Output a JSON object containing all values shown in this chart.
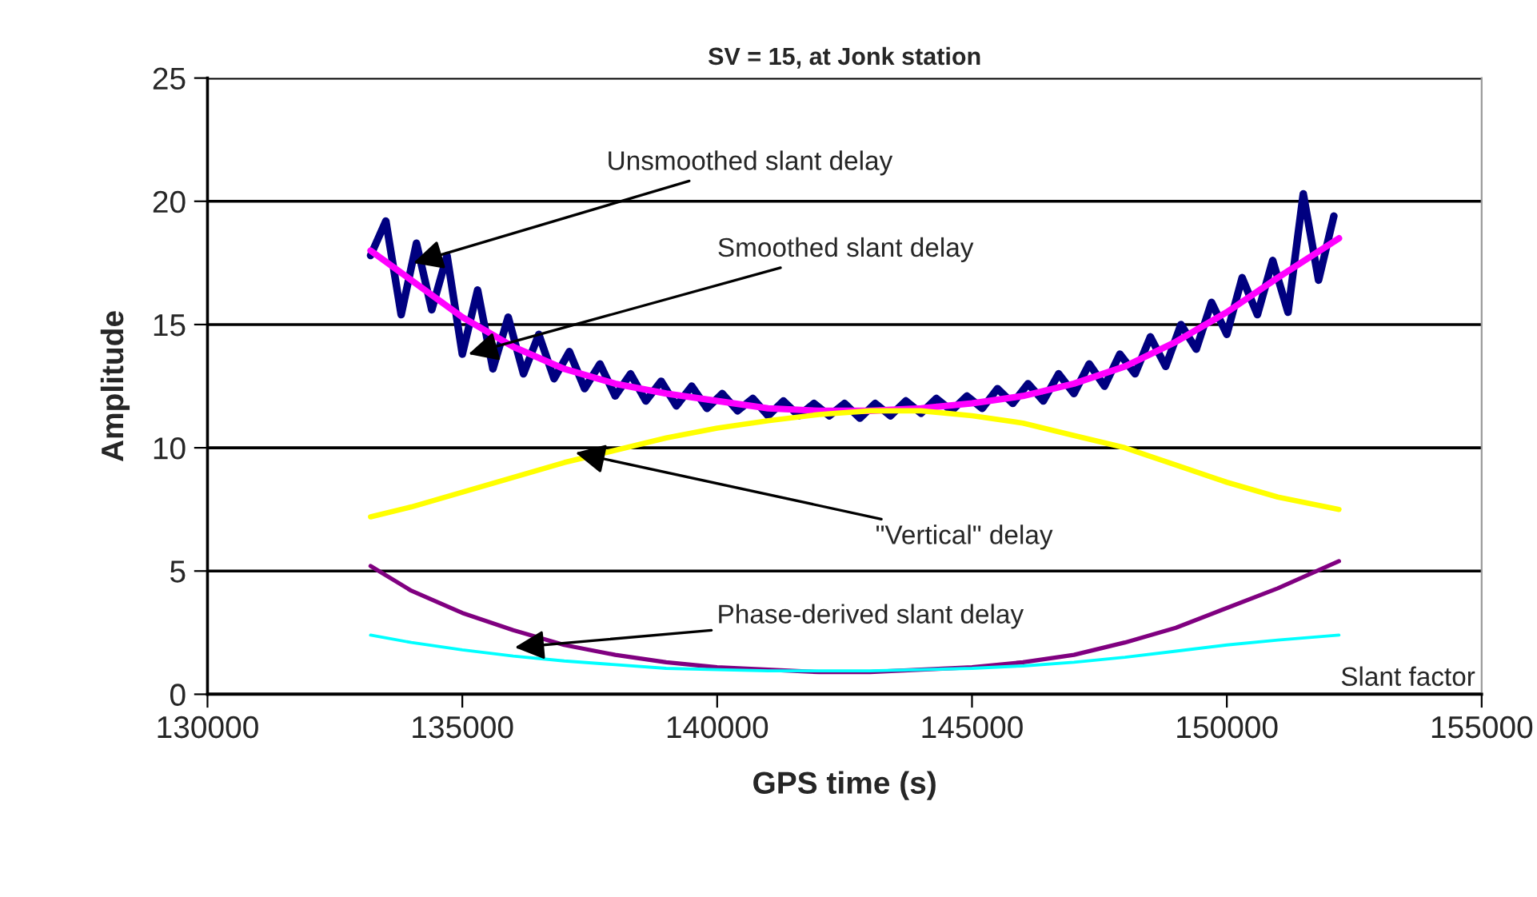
{
  "chart_data": {
    "type": "line",
    "title": "SV = 15, at Jonk station",
    "xlabel": "GPS time (s)",
    "ylabel": "Amplitude",
    "xlim": [
      130000,
      155000
    ],
    "xticks": [
      130000,
      135000,
      140000,
      145000,
      150000,
      155000
    ],
    "ylim": [
      0,
      25
    ],
    "yticks": [
      0,
      5,
      10,
      15,
      20,
      25
    ],
    "grid": "y",
    "legend": false,
    "marker": "none",
    "line_style": "solid",
    "series": [
      {
        "color": "#000080",
        "x": [
          133200,
          133500,
          133800,
          134100,
          134400,
          134700,
          135000,
          135300,
          135600,
          135900,
          136200,
          136500,
          136800,
          137100,
          137400,
          137700,
          138000,
          138300,
          138600,
          138900,
          139200,
          139500,
          139800,
          140100,
          140400,
          140700,
          141000,
          141300,
          141600,
          141900,
          142200,
          142500,
          142800,
          143100,
          143400,
          143700,
          144000,
          144300,
          144600,
          144900,
          145200,
          145500,
          145800,
          146100,
          146400,
          146700,
          147000,
          147300,
          147600,
          147900,
          148200,
          148500,
          148800,
          149100,
          149400,
          149700,
          150000,
          150300,
          150600,
          150900,
          151200,
          151500,
          151800,
          152100
        ],
        "values": [
          17.8,
          19.2,
          15.4,
          18.3,
          15.6,
          17.8,
          13.8,
          16.4,
          13.2,
          15.3,
          13.0,
          14.6,
          12.8,
          13.9,
          12.4,
          13.4,
          12.1,
          13.0,
          11.9,
          12.7,
          11.7,
          12.5,
          11.6,
          12.2,
          11.5,
          12.0,
          11.3,
          11.9,
          11.3,
          11.8,
          11.3,
          11.8,
          11.2,
          11.8,
          11.3,
          11.9,
          11.4,
          12.0,
          11.5,
          12.1,
          11.6,
          12.4,
          11.8,
          12.6,
          11.9,
          13.0,
          12.2,
          13.4,
          12.5,
          13.8,
          13.0,
          14.5,
          13.3,
          15.0,
          14.0,
          15.9,
          14.6,
          16.9,
          15.4,
          17.6,
          15.5,
          20.3,
          16.8,
          19.4
        ]
      },
      {
        "color": "#ff00ff",
        "x": [
          133200,
          134000,
          135000,
          136000,
          137000,
          138000,
          139000,
          140000,
          141000,
          142000,
          143000,
          144000,
          145000,
          146000,
          147000,
          148000,
          149000,
          150000,
          151000,
          152200
        ],
        "values": [
          18.0,
          16.8,
          15.3,
          14.1,
          13.2,
          12.6,
          12.2,
          11.9,
          11.6,
          11.5,
          11.5,
          11.6,
          11.8,
          12.1,
          12.6,
          13.3,
          14.3,
          15.5,
          16.9,
          18.5
        ]
      },
      {
        "color": "#ffff00",
        "x": [
          133200,
          134000,
          135000,
          136000,
          137000,
          138000,
          139000,
          140000,
          141000,
          142000,
          143000,
          144000,
          145000,
          146000,
          147000,
          148000,
          149000,
          150000,
          151000,
          152200
        ],
        "values": [
          7.2,
          7.6,
          8.2,
          8.8,
          9.4,
          9.9,
          10.4,
          10.8,
          11.1,
          11.35,
          11.5,
          11.5,
          11.3,
          11.0,
          10.5,
          10.0,
          9.3,
          8.6,
          8.0,
          7.5
        ]
      },
      {
        "color": "#800080",
        "x": [
          133200,
          134000,
          135000,
          136000,
          137000,
          138000,
          139000,
          140000,
          141000,
          142000,
          143000,
          144000,
          145000,
          146000,
          147000,
          148000,
          149000,
          150000,
          151000,
          152200
        ],
        "values": [
          5.2,
          4.2,
          3.3,
          2.6,
          2.0,
          1.6,
          1.3,
          1.1,
          1.0,
          0.9,
          0.9,
          1.0,
          1.1,
          1.3,
          1.6,
          2.1,
          2.7,
          3.5,
          4.3,
          5.4
        ]
      },
      {
        "color": "#00ffff",
        "x": [
          133200,
          134000,
          135000,
          136000,
          137000,
          138000,
          139000,
          140000,
          141000,
          142000,
          143000,
          144000,
          145000,
          146000,
          147000,
          148000,
          149000,
          150000,
          151000,
          152200
        ],
        "values": [
          2.4,
          2.1,
          1.8,
          1.55,
          1.35,
          1.2,
          1.05,
          1.0,
          0.95,
          0.95,
          0.95,
          1.0,
          1.05,
          1.15,
          1.3,
          1.5,
          1.75,
          2.0,
          2.2,
          2.4
        ]
      }
    ],
    "annotations": [
      {
        "text": "Unsmoothed slant delay",
        "x": 134040,
        "y": 17.5
      },
      {
        "text": "Smoothed slant delay",
        "x": 135120,
        "y": 13.8
      },
      {
        "text": "\"Vertical\" delay",
        "x": 137220,
        "y": 9.8
      },
      {
        "text": "Phase-derived slant delay",
        "x": 136030,
        "y": 1.9
      },
      "Slant factor"
    ]
  }
}
